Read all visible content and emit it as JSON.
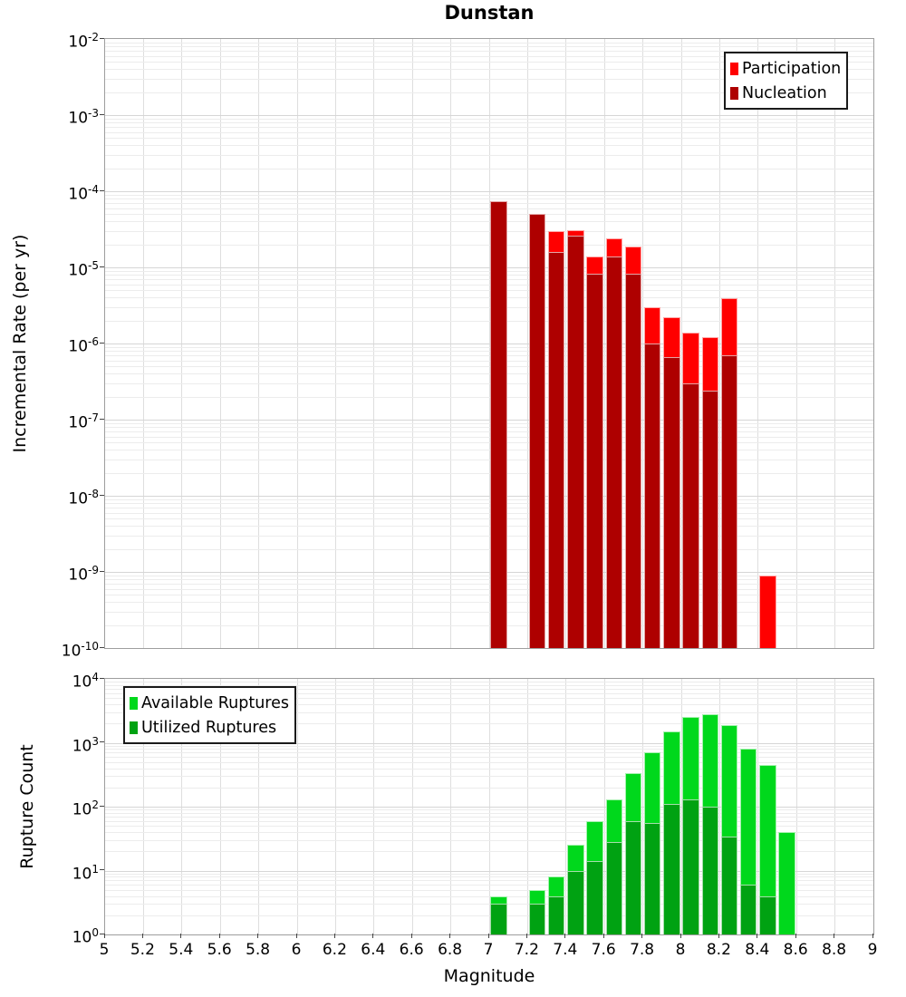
{
  "title": "Dunstan",
  "x_axis": {
    "label": "Magnitude",
    "min": 5,
    "max": 9,
    "grid_step": 0.2,
    "tick_labels": [
      "5",
      "5.2",
      "5.4",
      "5.6",
      "5.8",
      "6",
      "6.2",
      "6.4",
      "6.6",
      "6.8",
      "7",
      "7.2",
      "7.4",
      "7.6",
      "7.8",
      "8",
      "8.2",
      "8.4",
      "8.6",
      "8.8",
      "9"
    ]
  },
  "chart_data": [
    {
      "type": "bar",
      "title": "Dunstan",
      "ylabel": "Incremental Rate (per yr)",
      "xlabel": "",
      "yscale": "log",
      "ylim": [
        1e-10,
        0.01
      ],
      "y_tick_exponents": [
        -2,
        -3,
        -4,
        -5,
        -6,
        -7,
        -8,
        -9,
        -10
      ],
      "xlim": [
        5,
        9
      ],
      "bin_width": 0.1,
      "categories": [
        7.05,
        7.15,
        7.25,
        7.35,
        7.45,
        7.55,
        7.65,
        7.75,
        7.85,
        7.95,
        8.05,
        8.15,
        8.25,
        8.35,
        8.45,
        8.55
      ],
      "series": [
        {
          "name": "Participation",
          "color": "#ff0000",
          "values": [
            7.5e-05,
            0,
            5e-05,
            3e-05,
            3.1e-05,
            1.4e-05,
            2.4e-05,
            1.9e-05,
            3e-06,
            2.2e-06,
            1.4e-06,
            1.2e-06,
            3.9e-06,
            0,
            9e-10,
            0
          ]
        },
        {
          "name": "Nucleation",
          "color": "#ae0000",
          "values": [
            7.5e-05,
            0,
            5e-05,
            1.6e-05,
            2.6e-05,
            8.3e-06,
            1.4e-05,
            8.3e-06,
            1e-06,
            6.7e-07,
            3e-07,
            2.4e-07,
            7e-07,
            0,
            0,
            0
          ]
        }
      ],
      "legend_position": "top-right",
      "grid": true
    },
    {
      "type": "bar",
      "title": "",
      "ylabel": "Rupture Count",
      "xlabel": "Magnitude",
      "yscale": "log",
      "ylim": [
        1,
        10000
      ],
      "y_tick_exponents": [
        4,
        3,
        2,
        1,
        0
      ],
      "xlim": [
        5,
        9
      ],
      "bin_width": 0.1,
      "categories": [
        7.05,
        7.15,
        7.25,
        7.35,
        7.45,
        7.55,
        7.65,
        7.75,
        7.85,
        7.95,
        8.05,
        8.15,
        8.25,
        8.35,
        8.45,
        8.55
      ],
      "series": [
        {
          "name": "Available Ruptures",
          "color": "#00d81c",
          "values": [
            4,
            0,
            5,
            8,
            25,
            60,
            130,
            340,
            700,
            1500,
            2500,
            2800,
            1900,
            800,
            450,
            40
          ]
        },
        {
          "name": "Utilized Ruptures",
          "color": "#00a212",
          "values": [
            3,
            0,
            3,
            4,
            10,
            14,
            28,
            60,
            55,
            110,
            130,
            100,
            34,
            6,
            4,
            0
          ]
        }
      ],
      "legend_position": "top-left",
      "grid": true
    }
  ]
}
